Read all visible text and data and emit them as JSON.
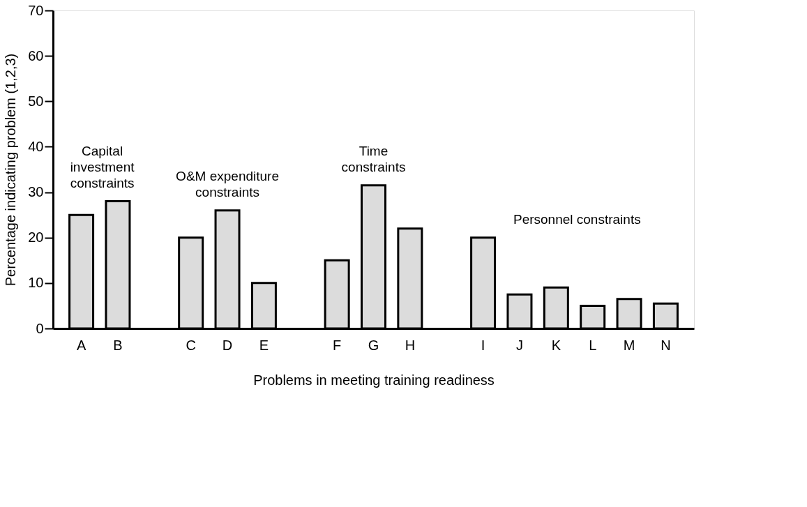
{
  "chart_data": {
    "type": "bar",
    "xlabel": "Problems in meeting training readiness",
    "ylabel": "Percentage indicating problem (1,2,3)",
    "categories": [
      "A",
      "B",
      null,
      "C",
      "D",
      "E",
      null,
      "F",
      "G",
      "H",
      null,
      "I",
      "J",
      "K",
      "L",
      "M",
      "N"
    ],
    "values": [
      25,
      28,
      null,
      20,
      26,
      10,
      null,
      15,
      31.5,
      22,
      null,
      20,
      7.5,
      9,
      5,
      6.5,
      5.5
    ],
    "color": "#dcdcdc",
    "ylim": [
      0,
      70
    ],
    "yticks": [
      0,
      10,
      20,
      30,
      40,
      50,
      60,
      70
    ],
    "grid": false,
    "annotations": [
      "Capital\ninvestment\nconstraints",
      "O&M  expenditure\nconstraints",
      "Time\nconstraints",
      "Personnel constraints"
    ]
  }
}
